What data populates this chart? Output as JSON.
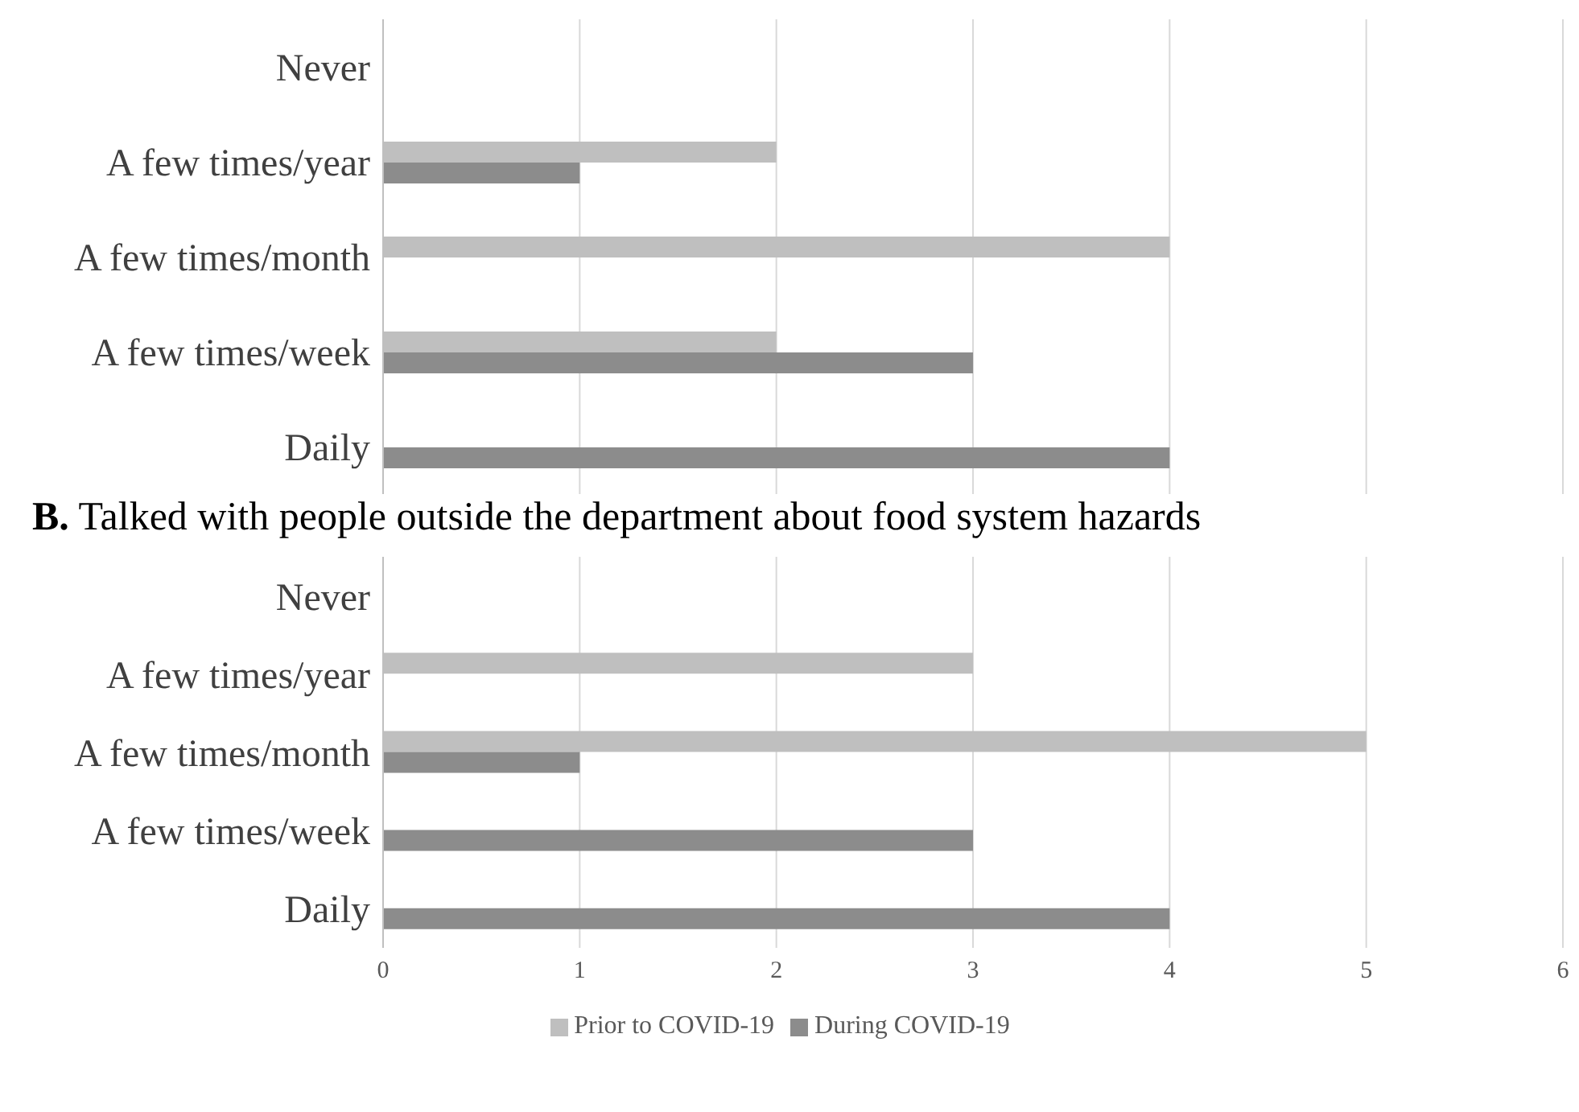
{
  "chart_data": [
    {
      "type": "bar",
      "orientation": "horizontal",
      "categories": [
        "Never",
        "A few times/year",
        "A few times/month",
        "A few times/week",
        "Daily"
      ],
      "series": [
        {
          "color": "#bfbfbf",
          "values": [
            0,
            2,
            4,
            2,
            0
          ]
        },
        {
          "color": "#8c8c8c",
          "values": [
            0,
            1,
            0,
            3,
            4
          ]
        }
      ],
      "xlim": [
        0,
        6
      ],
      "xticks": [
        0,
        1,
        2,
        3,
        4,
        5,
        6
      ],
      "grid": "x",
      "tick_labels": "y",
      "legend": false
    },
    {
      "type": "bar",
      "orientation": "horizontal",
      "title": "B. Talked with people outside the department about food system hazards",
      "categories": [
        "Never",
        "A few times/year",
        "A few times/month",
        "A few times/week",
        "Daily"
      ],
      "series": [
        {
          "name": "Prior to COVID-19",
          "color": "#bfbfbf",
          "values": [
            0,
            3,
            5,
            0,
            0
          ]
        },
        {
          "name": "During COVID-19",
          "color": "#8c8c8c",
          "values": [
            0,
            0,
            1,
            3,
            4
          ]
        }
      ],
      "xlim": [
        0,
        6
      ],
      "xticks": [
        0,
        1,
        2,
        3,
        4,
        5,
        6
      ],
      "grid": "x",
      "legend": "bottom"
    }
  ]
}
